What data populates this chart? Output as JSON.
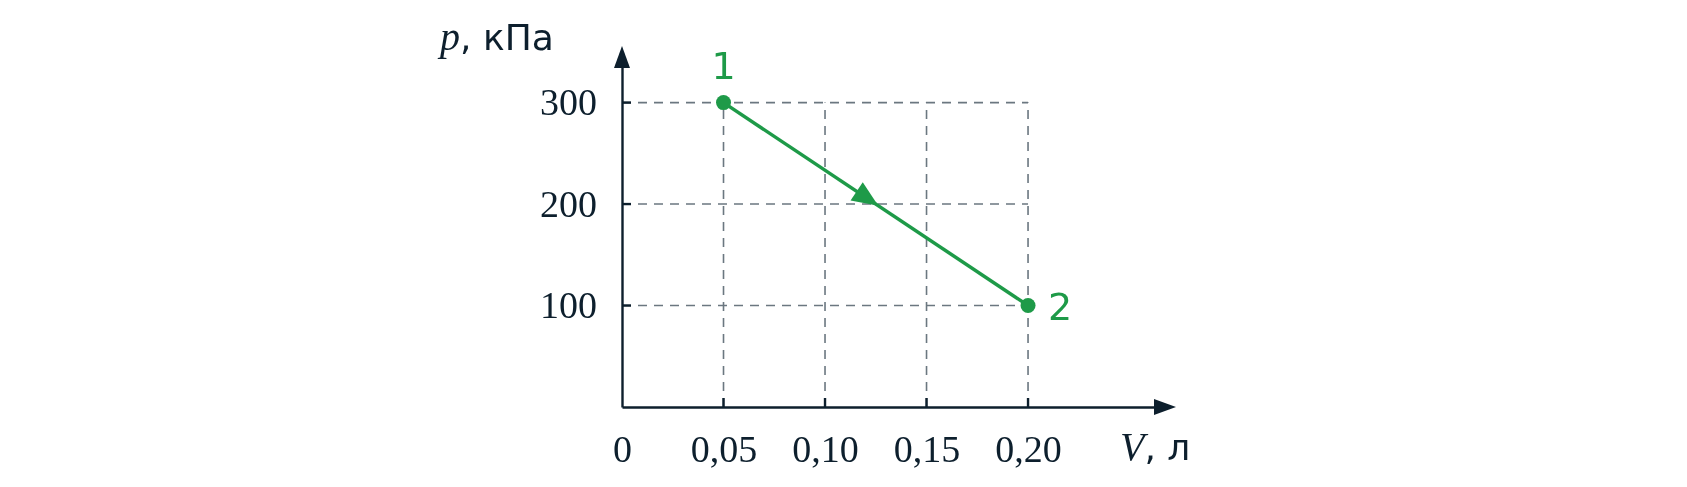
{
  "chart_data": {
    "type": "line",
    "xlabel": "V, л",
    "ylabel": "p, кПа",
    "x": [
      0.05,
      0.2
    ],
    "series": [
      {
        "color": "#1e9a48",
        "values": [
          300,
          100
        ]
      }
    ],
    "xlim": [
      0,
      0.265
    ],
    "ylim": [
      0,
      340
    ],
    "xticks": [
      {
        "value": 0,
        "label": "0"
      },
      {
        "value": 0.05,
        "label": "0,05"
      },
      {
        "value": 0.1,
        "label": "0,10"
      },
      {
        "value": 0.15,
        "label": "0,15"
      },
      {
        "value": 0.2,
        "label": "0,20"
      }
    ],
    "yticks": [
      100,
      200,
      300
    ],
    "grid": true,
    "marker": "circle",
    "line_style": "solid",
    "annotations": [
      {
        "text": "1",
        "x": 0.05,
        "y": 300
      },
      {
        "text": "2",
        "x": 0.2,
        "y": 100
      }
    ]
  }
}
